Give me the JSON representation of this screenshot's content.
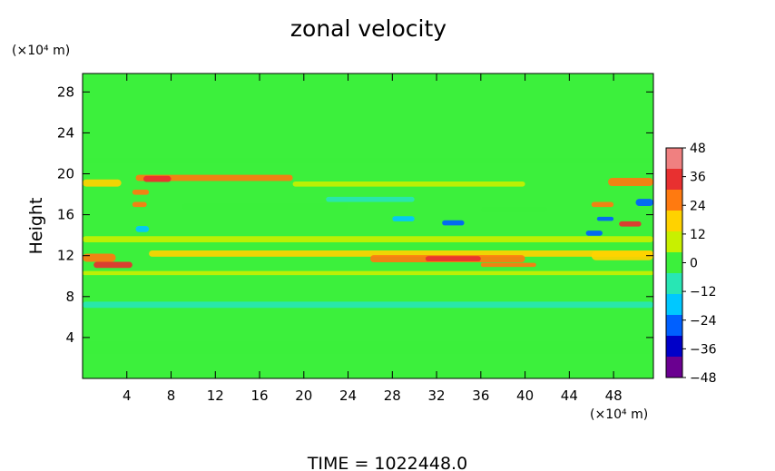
{
  "chart_data": {
    "type": "heatmap",
    "title": "zonal velocity",
    "ylabel": "Height",
    "y_unit": "(×10⁴ m)",
    "x_unit": "(×10⁴ m)",
    "footer": "TIME  =  1022448.0",
    "xlim": [
      0,
      51.6
    ],
    "ylim": [
      0,
      29.8
    ],
    "x_ticks": [
      4,
      8,
      12,
      16,
      20,
      24,
      28,
      32,
      36,
      40,
      44,
      48
    ],
    "y_ticks": [
      4,
      8,
      12,
      16,
      20,
      24,
      28
    ],
    "colorbar": {
      "min": -48,
      "max": 48,
      "ticks": [
        48,
        36,
        24,
        12,
        0,
        -12,
        -24,
        -36,
        -48
      ],
      "tick_labels": [
        "48",
        "36",
        "24",
        "12",
        "0",
        "−12",
        "−24",
        "−36",
        "−48"
      ],
      "colors": [
        "#f08080",
        "#e83030",
        "#ff7a10",
        "#ffd200",
        "#c8f000",
        "#3cf03c",
        "#28e6b4",
        "#00c8ff",
        "#0060ff",
        "#0000c8",
        "#6a0090"
      ]
    },
    "grid": false,
    "background_value": 0,
    "features": [
      {
        "x0": 0.0,
        "x1": 3.5,
        "y": 19.1,
        "thick": 0.7,
        "value": 20
      },
      {
        "x0": 4.8,
        "x1": 19.0,
        "y": 19.6,
        "thick": 0.6,
        "value": 22
      },
      {
        "x0": 5.5,
        "x1": 8.0,
        "y": 19.5,
        "thick": 0.6,
        "value": 38
      },
      {
        "x0": 19.0,
        "x1": 40.0,
        "y": 19.0,
        "thick": 0.5,
        "value": 10
      },
      {
        "x0": 47.5,
        "x1": 51.6,
        "y": 19.2,
        "thick": 0.8,
        "value": 30
      },
      {
        "x0": 4.5,
        "x1": 6.0,
        "y": 18.2,
        "thick": 0.5,
        "value": 30
      },
      {
        "x0": 4.5,
        "x1": 5.8,
        "y": 17.0,
        "thick": 0.5,
        "value": 28
      },
      {
        "x0": 46.0,
        "x1": 48.0,
        "y": 17.0,
        "thick": 0.5,
        "value": 24
      },
      {
        "x0": 50.0,
        "x1": 51.6,
        "y": 17.2,
        "thick": 0.7,
        "value": -22
      },
      {
        "x0": 46.5,
        "x1": 48.0,
        "y": 15.6,
        "thick": 0.4,
        "value": -28
      },
      {
        "x0": 48.5,
        "x1": 50.5,
        "y": 15.1,
        "thick": 0.5,
        "value": 36
      },
      {
        "x0": 4.8,
        "x1": 6.0,
        "y": 14.6,
        "thick": 0.6,
        "value": -20
      },
      {
        "x0": 32.5,
        "x1": 34.5,
        "y": 15.2,
        "thick": 0.5,
        "value": -24
      },
      {
        "x0": 28.0,
        "x1": 30.0,
        "y": 15.6,
        "thick": 0.5,
        "value": -14
      },
      {
        "x0": 45.5,
        "x1": 47.0,
        "y": 14.2,
        "thick": 0.5,
        "value": -28
      },
      {
        "x0": 0.0,
        "x1": 3.0,
        "y": 11.8,
        "thick": 0.8,
        "value": 26
      },
      {
        "x0": 1.0,
        "x1": 4.5,
        "y": 11.1,
        "thick": 0.6,
        "value": 34
      },
      {
        "x0": 6.0,
        "x1": 51.6,
        "y": 12.2,
        "thick": 0.6,
        "value": 18
      },
      {
        "x0": 26.0,
        "x1": 40.0,
        "y": 11.7,
        "thick": 0.7,
        "value": 24
      },
      {
        "x0": 31.0,
        "x1": 36.0,
        "y": 11.7,
        "thick": 0.5,
        "value": 34
      },
      {
        "x0": 36.0,
        "x1": 41.0,
        "y": 11.1,
        "thick": 0.4,
        "value": 26
      },
      {
        "x0": 46.0,
        "x1": 51.6,
        "y": 12.0,
        "thick": 0.9,
        "value": 20
      },
      {
        "x0": 0.0,
        "x1": 51.6,
        "y": 10.3,
        "thick": 0.4,
        "value": 6
      },
      {
        "x0": 0.0,
        "x1": 51.6,
        "y": 13.6,
        "thick": 0.6,
        "value": 8
      },
      {
        "x0": 9.0,
        "x1": 24.0,
        "y": 16.8,
        "thick": 0.6,
        "value": 4
      },
      {
        "x0": 22.0,
        "x1": 30.0,
        "y": 17.5,
        "thick": 0.5,
        "value": -8
      },
      {
        "x0": 36.0,
        "x1": 42.0,
        "y": 16.5,
        "thick": 0.6,
        "value": 4
      },
      {
        "x0": 0.0,
        "x1": 51.6,
        "y": 7.2,
        "thick": 0.6,
        "value": -5
      },
      {
        "x0": 0.0,
        "x1": 51.6,
        "y": 3.0,
        "thick": 1.2,
        "value": -4
      },
      {
        "x0": 0.0,
        "x1": 51.6,
        "y": 21.3,
        "thick": 0.6,
        "value": 3
      }
    ]
  }
}
